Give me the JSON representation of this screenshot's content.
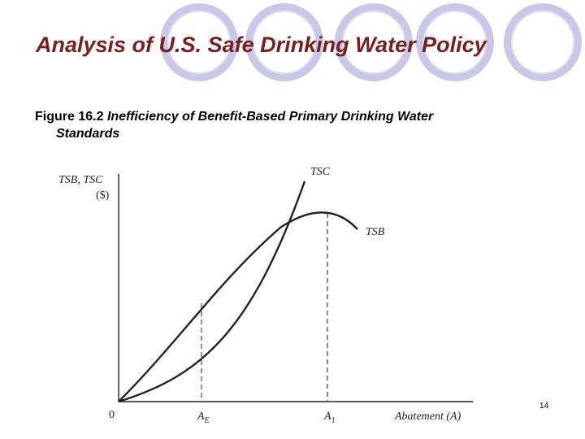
{
  "slide": {
    "title": "Analysis of U.S. Safe Drinking Water Policy",
    "caption_number": "Figure 16.2",
    "caption_line1": "Inefficiency of Benefit-Based Primary Drinking Water",
    "caption_line2": "Standards",
    "page_number": "14"
  },
  "decor": {
    "circle_fill": "#c9c8e6",
    "circle_stroke": "#e4e3f2"
  },
  "graph": {
    "y_axis_label_1": "TSB, TSC",
    "y_axis_label_2": "($)",
    "x_axis_label": "Abatement (A)",
    "origin_label": "0",
    "ae_label": "A",
    "ae_sub": "E",
    "a1_label": "A",
    "a1_sub": "1",
    "tsc_label": "TSC",
    "tsb_label": "TSB"
  }
}
